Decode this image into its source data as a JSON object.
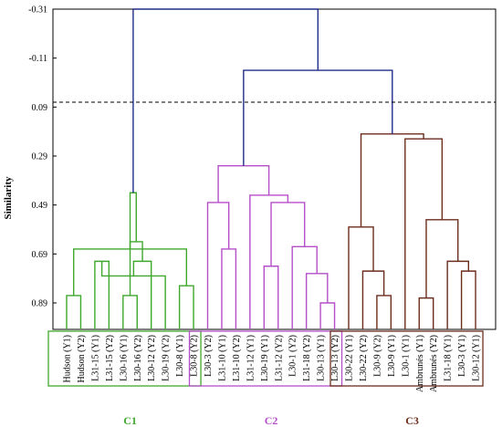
{
  "chart_data": {
    "type": "dendrogram",
    "ylabel": "Similarity",
    "yticks": [
      -0.31,
      -0.11,
      0.09,
      0.29,
      0.49,
      0.69,
      0.89
    ],
    "ytick_labels": [
      "-0.31",
      "-0.11",
      "0.09",
      "0.29",
      "0.49",
      "0.69",
      "0.89"
    ],
    "ylim": [
      -0.31,
      0.99
    ],
    "cut_line_similarity": 0.07,
    "leaves": [
      "Hudson (Y1)",
      "Hudson (Y2)",
      "L31-15 (Y1)",
      "L31-15 (Y2)",
      "L30-16 (Y1)",
      "L30-16 (Y2)",
      "L30-12 (Y2)",
      "L30-19 (Y2)",
      "L30-8 (Y1)",
      "L30-8 (Y2)",
      "L30-3 (Y2)",
      "L31-10 (Y1)",
      "L31-10 (Y2)",
      "L31-12 (Y1)",
      "L30-19 (Y1)",
      "L31-12 (Y2)",
      "L30-1 (Y2)",
      "L31-18 (Y2)",
      "L30-13 (Y1)",
      "L30-13 (Y2)",
      "L30-22 (Y1)",
      "L30-22 (Y2)",
      "L30-9 (Y2)",
      "L30-9 (Y1)",
      "L30-1 (Y1)",
      "Ambrunés (Y1)",
      "Ambrunés (Y2)",
      "L31-18 (Y1)",
      "L30-3 (Y1)",
      "L30-12 (Y1)"
    ],
    "merges": [
      [
        0,
        1,
        0.86
      ],
      [
        4,
        5,
        0.86
      ],
      [
        8,
        9,
        0.82
      ],
      [
        3,
        2,
        0.72
      ],
      [
        7,
        33,
        0.78
      ],
      [
        6,
        34,
        0.72
      ],
      [
        32,
        30,
        0.67
      ],
      [
        31,
        35,
        0.64
      ],
      [
        36,
        37,
        0.44
      ],
      [
        11,
        12,
        0.67
      ],
      [
        10,
        39,
        0.48
      ],
      [
        18,
        19,
        0.89
      ],
      [
        17,
        41,
        0.77
      ],
      [
        14,
        15,
        0.74
      ],
      [
        16,
        42,
        0.66
      ],
      [
        43,
        44,
        0.48
      ],
      [
        13,
        45,
        0.45
      ],
      [
        40,
        46,
        0.33
      ],
      [
        22,
        23,
        0.86
      ],
      [
        21,
        48,
        0.76
      ],
      [
        20,
        49,
        0.58
      ],
      [
        25,
        26,
        0.87
      ],
      [
        28,
        29,
        0.76
      ],
      [
        27,
        52,
        0.72
      ],
      [
        53,
        51,
        0.55
      ],
      [
        24,
        54,
        0.22
      ],
      [
        50,
        55,
        0.2
      ],
      [
        47,
        56,
        -0.06
      ],
      [
        38,
        57,
        -0.31
      ]
    ],
    "clusters": [
      {
        "name": "C1",
        "color": "#3fa82c",
        "leaf_range": [
          0,
          9
        ]
      },
      {
        "name": "C2",
        "color": "#b54fc9",
        "leaf_range": [
          10,
          19
        ]
      },
      {
        "name": "C3",
        "color": "#6b2d1c",
        "leaf_range": [
          20,
          29
        ]
      }
    ],
    "root_color": "#1f2d8a"
  }
}
